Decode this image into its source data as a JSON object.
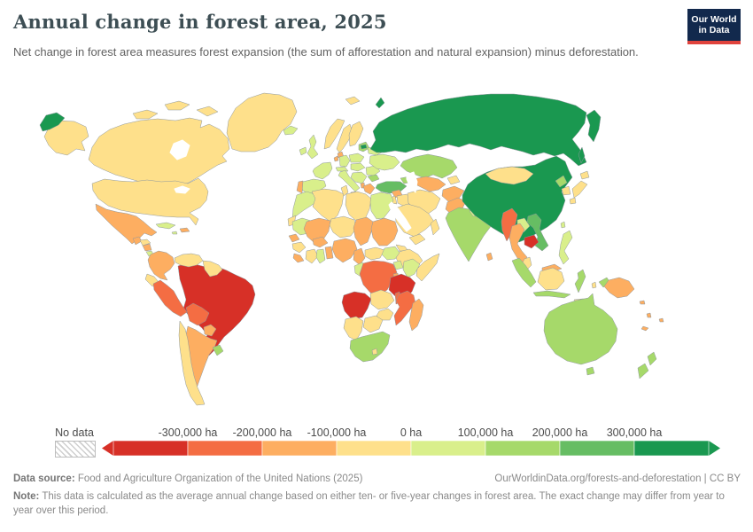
{
  "header": {
    "title": "Annual change in forest area, 2025",
    "subtitle": "Net change in forest area measures forest expansion (the sum of afforestation and natural expansion) minus deforestation."
  },
  "logo": {
    "line1": "Our World",
    "line2": "in Data"
  },
  "legend": {
    "no_data_label": "No data",
    "tick_labels": [
      "-300,000 ha",
      "-200,000 ha",
      "-100,000 ha",
      "0 ha",
      "100,000 ha",
      "200,000 ha",
      "300,000 ha"
    ],
    "colors": [
      "#d73027",
      "#f46d43",
      "#fdae61",
      "#fee08b",
      "#d9ef8b",
      "#a6d96a",
      "#66bd63",
      "#1a9850"
    ]
  },
  "footer": {
    "source_label": "Data source:",
    "source_text": " Food and Agriculture Organization of the United Nations (2025)",
    "link_text": "OurWorldinData.org/forests-and-deforestation | CC BY",
    "note_label": "Note:",
    "note_text": " This data is calculated as the average annual change based on either ten- or five-year changes in forest area. The exact change may differ from year to year over this period."
  },
  "chart_data": {
    "type": "choropleth-map",
    "title": "Annual change in forest area, 2025",
    "unit": "ha",
    "scale_stops_ha": [
      -300000,
      -200000,
      -100000,
      0,
      100000,
      200000,
      300000
    ],
    "legend_position": "bottom",
    "palette": [
      "#d73027",
      "#f46d43",
      "#fdae61",
      "#fee08b",
      "#d9ef8b",
      "#a6d96a",
      "#66bd63",
      "#1a9850"
    ]
  },
  "map": {
    "stroke": "#8f989e",
    "palette": {
      "red": "#d73027",
      "orangeRed": "#f46d43",
      "orange": "#fdae61",
      "paleYellow": "#fee08b",
      "yellowGreen": "#d9ef8b",
      "lightGreen": "#a6d96a",
      "green": "#66bd63",
      "darkGreen": "#1a9850"
    },
    "countries": {
      "greenland": "paleYellow",
      "canada": "paleYellow",
      "arctic-islands-1": "paleYellow",
      "arctic-islands-2": "paleYellow",
      "arctic-islands-3": "paleYellow",
      "alaska": "paleYellow",
      "chukotka": "darkGreen",
      "usa": "paleYellow",
      "mexico": "orange",
      "guatemala": "orange",
      "honduras": "paleYellow",
      "nicaragua": "orange",
      "costa-rica": "yellowGreen",
      "panama": "yellowGreen",
      "cuba": "yellowGreen",
      "hispaniola": "orange",
      "jamaica": "yellowGreen",
      "colombia": "orange",
      "venezuela": "paleYellow",
      "guyanas": "paleYellow",
      "ecuador": "paleYellow",
      "peru": "orangeRed",
      "brazil": "red",
      "bolivia": "orangeRed",
      "paraguay": "orange",
      "chile": "paleYellow",
      "argentina": "orange",
      "uruguay": "lightGreen",
      "iceland": "yellowGreen",
      "ireland": "yellowGreen",
      "uk": "yellowGreen",
      "norway": "paleYellow",
      "sweden": "paleYellow",
      "finland": "paleYellow",
      "svalbard": "paleYellow",
      "denmark": "orange",
      "baltics": "lightGreen",
      "latvia": "darkGreen",
      "poland": "yellowGreen",
      "germany": "yellowGreen",
      "benelux": "orange",
      "france": "yellowGreen",
      "spain": "yellowGreen",
      "portugal": "orange",
      "switzerland-austria": "yellowGreen",
      "italy": "yellowGreen",
      "sicily": "orange",
      "czech-hungary": "yellowGreen",
      "balkans": "yellowGreen",
      "albania": "orange",
      "greece": "orange",
      "romania": "yellowGreen",
      "bulgaria": "lightGreen",
      "ukraine": "yellowGreen",
      "belarus": "yellowGreen",
      "russia": "darkGreen",
      "kamchatka": "darkGreen",
      "sakhalin": "darkGreen",
      "novaya-zemlya": "darkGreen",
      "kazakhstan": "lightGreen",
      "uzbek-turkmen": "orange",
      "kyrgyz-tajik": "paleYellow",
      "caucasus": "lightGreen",
      "turkey": "green",
      "syria": "orange",
      "israel-jordan": "paleYellow",
      "iraq": "paleYellow",
      "iran": "paleYellow",
      "saudi": "paleYellow",
      "yemen": "paleYellow",
      "oman": "paleYellow",
      "afghanistan": "orange",
      "pakistan": "orange",
      "india": "lightGreen",
      "nepal": "yellowGreen",
      "bangladesh": "orange",
      "sri-lanka": "orange",
      "china": "darkGreen",
      "mongolia": "paleYellow",
      "nkorea": "lightGreen",
      "skorea": "paleYellow",
      "hokkaido": "paleYellow",
      "honshu": "paleYellow",
      "kyushu": "paleYellow",
      "taiwan": "yellowGreen",
      "myanmar": "orangeRed",
      "laos": "yellowGreen",
      "thailand": "orange",
      "cambodia": "red",
      "vietnam": "green",
      "malaysia-pen": "paleYellow",
      "east-malaysia": "orange",
      "borneo": "paleYellow",
      "sumatra": "lightGreen",
      "java": "lightGreen",
      "sulawesi": "lightGreen",
      "lesser-sunda": "paleYellow",
      "maluku": "paleYellow",
      "west-papua": "lightGreen",
      "png": "orange",
      "philippines": "yellowGreen",
      "morocco": "yellowGreen",
      "western-sahara": "paleYellow",
      "algeria": "paleYellow",
      "tunisia": "paleYellow",
      "libya": "paleYellow",
      "egypt": "yellowGreen",
      "mauritania": "yellowGreen",
      "mali": "orange",
      "niger": "paleYellow",
      "chad": "orange",
      "sudan": "orange",
      "eritrea": "paleYellow",
      "ethiopia": "paleYellow",
      "somalia": "paleYellow",
      "senegal": "orange",
      "guinea": "paleYellow",
      "sierra-leone": "orange",
      "ivory-coast": "paleYellow",
      "ghana": "yellowGreen",
      "togo-benin": "orange",
      "burkina": "orange",
      "nigeria": "orange",
      "cameroon": "orange",
      "car": "paleYellow",
      "south-sudan": "yellowGreen",
      "uganda": "yellowGreen",
      "kenya": "yellowGreen",
      "gabon-congo": "yellowGreen",
      "drc": "orangeRed",
      "rwanda-burundi": "orange",
      "tanzania": "red",
      "angola": "red",
      "zambia": "paleYellow",
      "malawi": "orangeRed",
      "mozambique": "orangeRed",
      "zimbabwe": "paleYellow",
      "botswana": "paleYellow",
      "namibia": "paleYellow",
      "south-africa": "lightGreen",
      "lesotho": "paleYellow",
      "madagascar": "orange",
      "australia": "lightGreen",
      "tasmania": "lightGreen",
      "nz-north": "lightGreen",
      "nz-south": "lightGreen",
      "solomon": "orange",
      "vanuatu": "orange",
      "fiji": "orange",
      "new-caledonia": "orange"
    }
  }
}
